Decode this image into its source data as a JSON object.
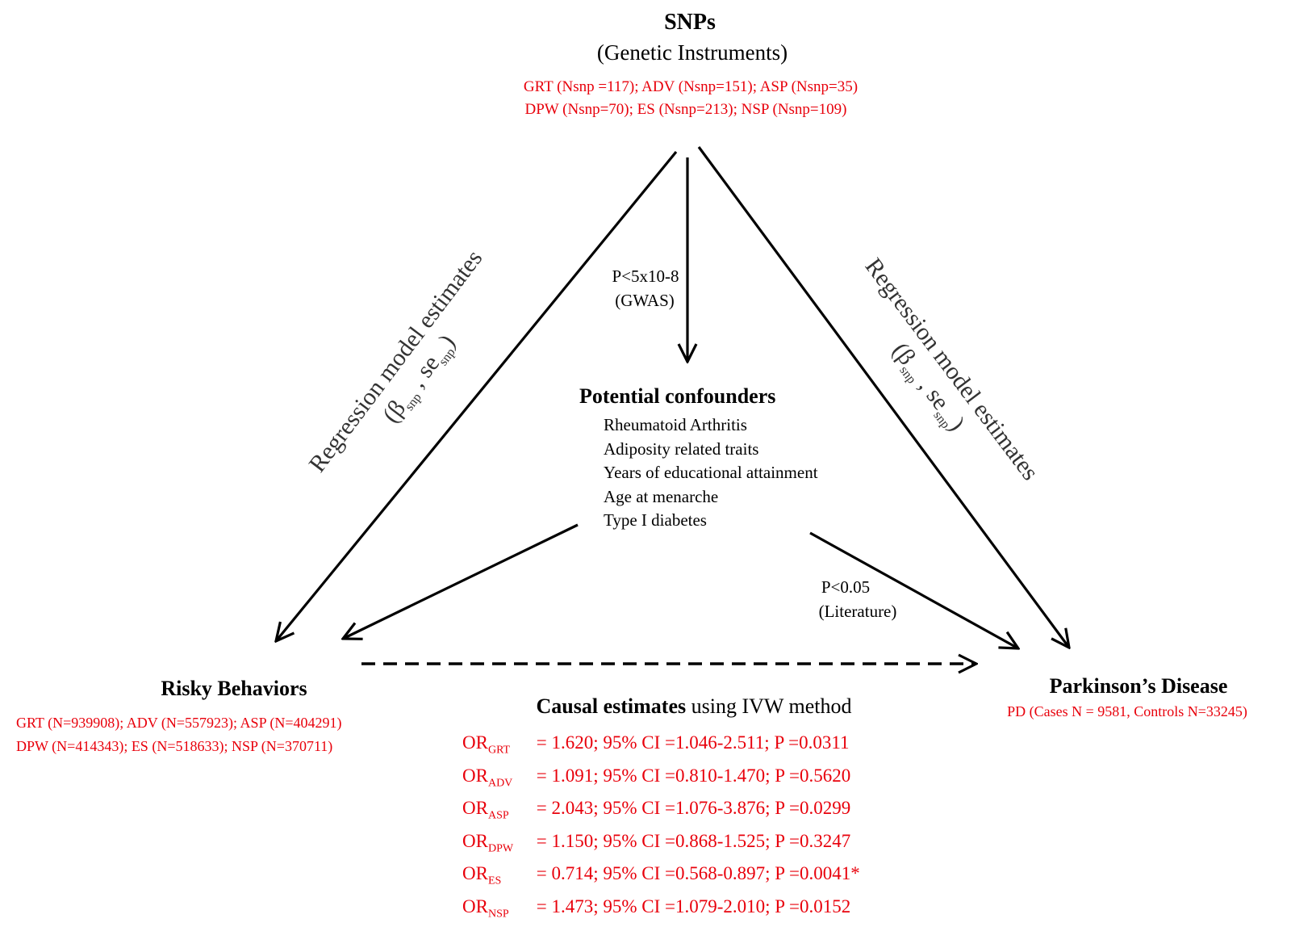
{
  "snps": {
    "title": "SNPs",
    "subtitle": "(Genetic Instruments)",
    "line1": "GRT  (Nsnp =117);  ADV  (Nsnp=151);  ASP (Nsnp=35)",
    "line2": "DPW (Nsnp=70);  ES (Nsnp=213);  NSP (Nsnp=109)"
  },
  "gwas": {
    "line1": "P<5x10-8",
    "line2": "(GWAS)"
  },
  "regression_label": {
    "text": "Regression model estimates",
    "beta": "β",
    "snp": "snp",
    "sep": " , se",
    "se_snp": "snp"
  },
  "confounders": {
    "title": "Potential confounders",
    "items": [
      "Rheumatoid  Arthritis",
      "Adiposity  related traits",
      "Years of educational attainment",
      "Age at menarche",
      "Type I diabetes"
    ]
  },
  "literature": {
    "line1": "P<0.05",
    "line2": "(Literature)"
  },
  "risky": {
    "title": "Risky Behaviors",
    "line1": "GRT  (N=939908);  ADV  (N=557923);  ASP (N=404291)",
    "line2": "DPW (N=414343);  ES (N=518633);  NSP (N=370711)"
  },
  "pd": {
    "title": "Parkinson’s Disease",
    "line1": "PD (Cases N = 9581,  Controls N=33245)"
  },
  "causal": {
    "title_bold": "Causal estimates",
    "title_rest": " using IVW method",
    "rows": [
      {
        "sub": "GRT",
        "text": " = 1.620; 95% CI =1.046-2.511; P =0.0311"
      },
      {
        "sub": "ADV",
        "text": " = 1.091; 95% CI =0.810-1.470; P =0.5620"
      },
      {
        "sub": "ASP",
        "text": " = 2.043; 95% CI =1.076-3.876; P =0.0299"
      },
      {
        "sub": "DPW",
        "text": " = 1.150; 95% CI =0.868-1.525; P =0.3247"
      },
      {
        "sub": "ES",
        "text": " = 0.714; 95% CI =0.568-0.897; P =0.0041*"
      },
      {
        "sub": "NSP",
        "text": " = 1.473; 95% CI =1.079-2.010; P =0.0152"
      }
    ],
    "or_prefix": "OR"
  }
}
